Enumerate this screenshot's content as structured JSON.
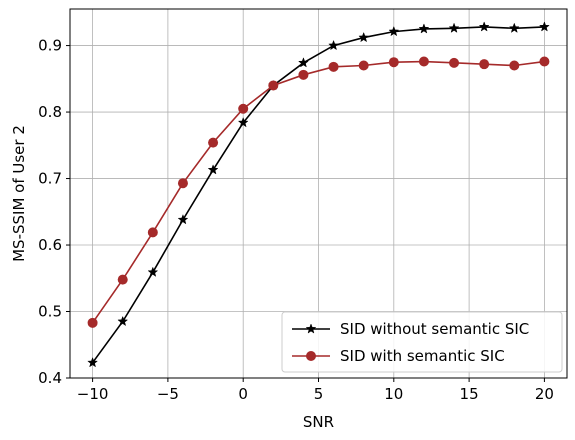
{
  "chart_data": {
    "type": "line",
    "title": "",
    "xlabel": "SNR",
    "ylabel": "MS-SSIM of User 2",
    "xlim": [
      -11.5,
      21.5
    ],
    "ylim": [
      0.4,
      0.955
    ],
    "xticks": [
      -10,
      -5,
      0,
      5,
      10,
      15,
      20
    ],
    "xtick_labels": [
      "−10",
      "−5",
      "0",
      "5",
      "10",
      "15",
      "20"
    ],
    "yticks": [
      0.4,
      0.5,
      0.6,
      0.7,
      0.8,
      0.9
    ],
    "ytick_labels": [
      "0.4",
      "0.5",
      "0.6",
      "0.7",
      "0.8",
      "0.9"
    ],
    "grid": true,
    "legend_position": "bottom-right",
    "x": [
      -10,
      -8,
      -6,
      -4,
      -2,
      0,
      2,
      4,
      6,
      8,
      10,
      12,
      14,
      16,
      18,
      20
    ],
    "series": [
      {
        "name": "SID without semantic SIC",
        "color": "#000000",
        "marker": "star",
        "values": [
          0.423,
          0.485,
          0.559,
          0.638,
          0.713,
          0.784,
          0.84,
          0.874,
          0.9,
          0.912,
          0.921,
          0.925,
          0.926,
          0.928,
          0.926,
          0.928
        ]
      },
      {
        "name": "SID with semantic SIC",
        "color": "#a52a2a",
        "marker": "circle",
        "values": [
          0.483,
          0.548,
          0.619,
          0.693,
          0.754,
          0.805,
          0.84,
          0.856,
          0.868,
          0.87,
          0.875,
          0.876,
          0.874,
          0.872,
          0.87,
          0.876
        ]
      }
    ]
  }
}
